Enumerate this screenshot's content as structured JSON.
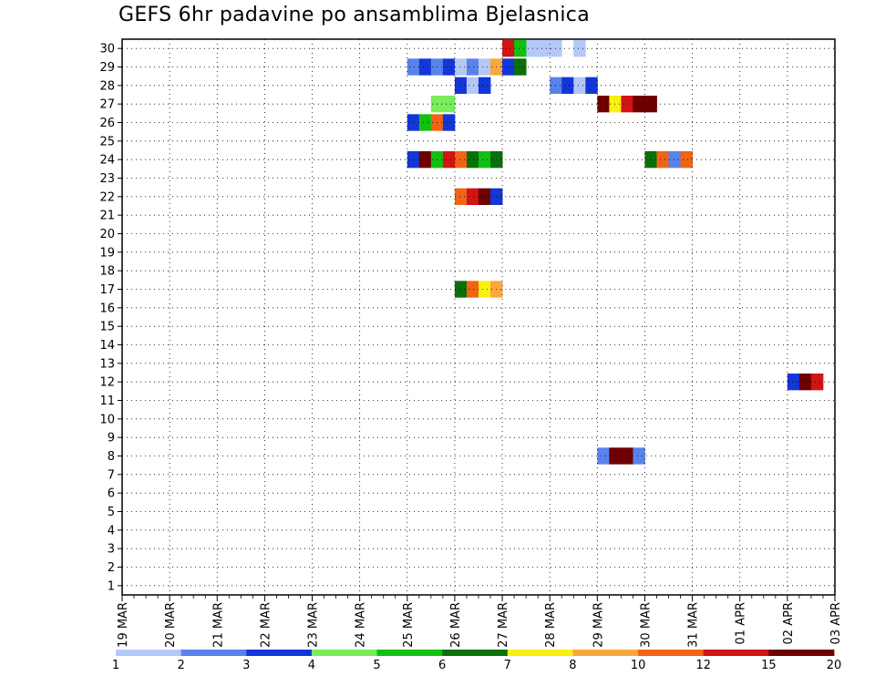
{
  "chart_data": {
    "type": "heatmap",
    "title": "GEFS 6hr padavine po ansamblima Bjelasnica",
    "x_tick_labels": [
      "19 MAR",
      "20 MAR",
      "21 MAR",
      "22 MAR",
      "23 MAR",
      "24 MAR",
      "25 MAR",
      "26 MAR",
      "27 MAR",
      "28 MAR",
      "29 MAR",
      "30 MAR",
      "31 MAR",
      "01 APR",
      "02 APR",
      "03 APR"
    ],
    "y_tick_labels": [
      "1",
      "2",
      "3",
      "4",
      "5",
      "6",
      "7",
      "8",
      "9",
      "10",
      "11",
      "12",
      "13",
      "14",
      "15",
      "16",
      "17",
      "18",
      "19",
      "20",
      "21",
      "22",
      "23",
      "24",
      "25",
      "26",
      "27",
      "28",
      "29",
      "30"
    ],
    "x_range": [
      "19 MAR",
      "03 APR"
    ],
    "y_range": [
      0,
      30
    ],
    "grid": true,
    "legend_position": "bottom",
    "color_scale": {
      "colors": [
        "#b4c8f8",
        "#5a82ec",
        "#1236d8",
        "#78ec5a",
        "#12c012",
        "#0a700a",
        "#f8f012",
        "#f8a83c",
        "#f06414",
        "#d21414",
        "#6e0000"
      ],
      "labels": [
        "1",
        "2",
        "3",
        "4",
        "5",
        "6",
        "7",
        "8",
        "10",
        "12",
        "15",
        "20"
      ]
    },
    "cells": [
      {
        "member": 30,
        "day": "26 MAR",
        "cols": [
          6,
          7,
          8,
          10
        ],
        "levels": [
          1,
          1,
          1,
          1
        ]
      },
      {
        "member": 30,
        "day": "27 MAR",
        "cols": [
          0,
          1
        ],
        "levels": [
          10,
          5
        ]
      },
      {
        "member": 29,
        "day": "25 MAR",
        "cols": [
          0,
          1,
          2,
          3
        ],
        "levels": [
          2,
          3,
          2,
          3
        ]
      },
      {
        "member": 29,
        "day": "26 MAR",
        "cols": [
          0,
          1,
          2,
          3,
          4,
          5
        ],
        "levels": [
          1,
          2,
          1,
          8,
          2,
          8
        ]
      },
      {
        "member": 29,
        "day": "27 MAR",
        "cols": [
          0,
          1
        ],
        "levels": [
          3,
          6
        ]
      },
      {
        "member": 28,
        "day": "26 MAR",
        "cols": [
          0,
          1,
          2
        ],
        "levels": [
          3,
          1,
          3
        ]
      },
      {
        "member": 28,
        "day": "28 MAR",
        "cols": [
          0,
          1,
          2,
          3
        ],
        "levels": [
          2,
          3,
          1,
          3
        ]
      },
      {
        "member": 27,
        "day": "25 MAR",
        "cols": [
          2,
          3
        ],
        "levels": [
          4,
          4
        ]
      },
      {
        "member": 27,
        "day": "29 MAR",
        "cols": [
          0,
          1,
          2,
          3,
          4
        ],
        "levels": [
          11,
          7,
          10,
          11,
          11
        ]
      },
      {
        "member": 26,
        "day": "25 MAR",
        "cols": [
          0,
          1,
          2,
          3
        ],
        "levels": [
          3,
          5,
          9,
          3
        ]
      },
      {
        "member": 24,
        "day": "25 MAR",
        "cols": [
          0,
          1,
          2,
          3
        ],
        "levels": [
          3,
          11,
          5,
          10
        ]
      },
      {
        "member": 24,
        "day": "26 MAR",
        "cols": [
          0,
          1,
          2,
          3
        ],
        "levels": [
          9,
          6,
          5,
          6
        ]
      },
      {
        "member": 24,
        "day": "30 MAR",
        "cols": [
          0,
          1,
          2,
          3
        ],
        "levels": [
          6,
          9,
          2,
          9
        ]
      },
      {
        "member": 22,
        "day": "26 MAR",
        "cols": [
          0,
          1,
          2,
          3
        ],
        "levels": [
          9,
          10,
          11,
          3
        ]
      },
      {
        "member": 17,
        "day": "26 MAR",
        "cols": [
          0,
          1,
          2,
          3
        ],
        "levels": [
          6,
          9,
          7,
          8
        ]
      },
      {
        "member": 12,
        "day": "02 APR",
        "cols": [
          0,
          1,
          2
        ],
        "levels": [
          3,
          11,
          10
        ]
      },
      {
        "member": 8,
        "day": "29 MAR",
        "cols": [
          0,
          1,
          2,
          3
        ],
        "levels": [
          2,
          11,
          11,
          2
        ]
      }
    ]
  }
}
